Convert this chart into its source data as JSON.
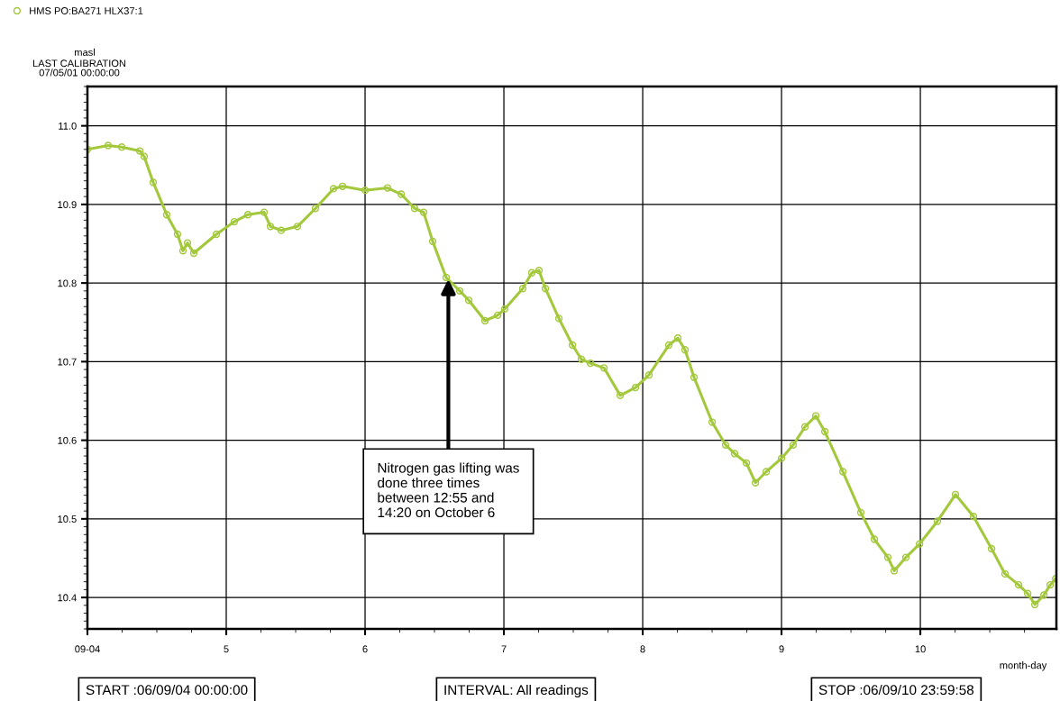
{
  "chart_data": {
    "type": "line",
    "ylabel": "masl",
    "xlabel": "month-day",
    "x": [
      4.0,
      4.149,
      4.247,
      4.377,
      4.409,
      4.474,
      4.571,
      4.649,
      4.688,
      4.721,
      4.766,
      4.929,
      5.058,
      5.156,
      5.273,
      5.318,
      5.396,
      5.513,
      5.643,
      5.773,
      5.838,
      6.0,
      6.162,
      6.26,
      6.357,
      6.422,
      6.487,
      6.584,
      6.682,
      6.747,
      6.864,
      6.955,
      7.006,
      7.136,
      7.201,
      7.253,
      7.299,
      7.396,
      7.494,
      7.558,
      7.623,
      7.721,
      7.838,
      7.948,
      8.045,
      8.188,
      8.253,
      8.305,
      8.37,
      8.5,
      8.597,
      8.662,
      8.747,
      8.812,
      8.89,
      9.0,
      9.084,
      9.169,
      9.247,
      9.312,
      9.442,
      9.571,
      9.669,
      9.766,
      9.812,
      9.896,
      9.994,
      10.123,
      10.253,
      10.383,
      10.513,
      10.61,
      10.708,
      10.773,
      10.825,
      10.89,
      10.935,
      10.975
    ],
    "series": [
      {
        "name": "HMS PO:BA271 HLX37:1",
        "color": "#a3c83c",
        "values": [
          10.97,
          10.975,
          10.973,
          10.968,
          10.961,
          10.928,
          10.887,
          10.862,
          10.841,
          10.851,
          10.838,
          10.862,
          10.878,
          10.887,
          10.89,
          10.872,
          10.867,
          10.872,
          10.895,
          10.92,
          10.923,
          10.918,
          10.921,
          10.913,
          10.895,
          10.89,
          10.853,
          10.807,
          10.79,
          10.778,
          10.752,
          10.759,
          10.767,
          10.793,
          10.813,
          10.816,
          10.793,
          10.755,
          10.721,
          10.703,
          10.698,
          10.692,
          10.657,
          10.667,
          10.683,
          10.721,
          10.73,
          10.715,
          10.68,
          10.623,
          10.594,
          10.583,
          10.571,
          10.546,
          10.56,
          10.577,
          10.594,
          10.617,
          10.631,
          10.611,
          10.56,
          10.508,
          10.474,
          10.451,
          10.434,
          10.451,
          10.468,
          10.497,
          10.531,
          10.503,
          10.462,
          10.43,
          10.416,
          10.405,
          10.391,
          10.403,
          10.416,
          10.424
        ]
      }
    ],
    "xlim": [
      4,
      10.98
    ],
    "ylim": [
      10.36,
      11.05
    ],
    "xticks": [
      {
        "value": 4,
        "label": "09-04"
      },
      5,
      6,
      7,
      8,
      9,
      10
    ],
    "yticks": [
      {
        "value": 10.4,
        "label": "10.4"
      },
      10.5,
      10.6,
      10.7,
      10.8,
      10.9,
      {
        "value": 11,
        "label": "11.0"
      }
    ],
    "grid": true,
    "marker": "circle",
    "line_style": "solid",
    "legend": "top left",
    "annotations": [
      {
        "text": "Nitrogen gas lifting was\ndone three times\nbetween 12:55 and\n14:20 on October 6",
        "x": 6.6,
        "y": 10.805
      },
      "LAST CALIBRATION\n07/05/01 00:00:00",
      "START :06/09/04 00:00:00",
      "INTERVAL: All readings",
      "STOP :06/09/10 23:59:58"
    ]
  }
}
